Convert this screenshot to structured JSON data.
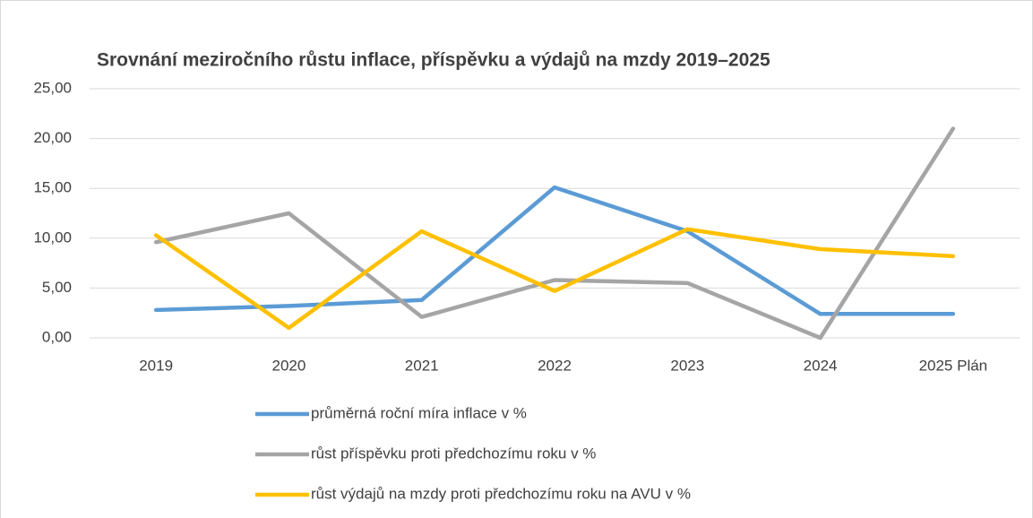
{
  "chart_data": {
    "type": "line",
    "title": "Srovnání meziročního růstu inflace, příspěvku a výdajů na mzdy 2019–2025",
    "categories": [
      "2019",
      "2020",
      "2021",
      "2022",
      "2023",
      "2024",
      "2025 Plán"
    ],
    "series": [
      {
        "name": "průměrná roční míra inflace v %",
        "color": "#5b9bd5",
        "values": [
          2.8,
          3.2,
          3.8,
          15.1,
          10.7,
          2.4,
          2.4
        ]
      },
      {
        "name": "růst příspěvku proti předchozímu roku v %",
        "color": "#a5a5a5",
        "values": [
          9.6,
          12.5,
          2.1,
          5.8,
          5.5,
          0,
          21.0
        ]
      },
      {
        "name": "růst výdajů na mzdy proti předchozímu roku na AVU v %",
        "color": "#ffc000",
        "values": [
          10.3,
          1.0,
          10.7,
          4.7,
          10.9,
          8.9,
          8.2
        ]
      }
    ],
    "ylim": [
      0,
      25
    ],
    "yticks": [
      {
        "value": 0,
        "label": "0,00"
      },
      {
        "value": 5,
        "label": "5,00"
      },
      {
        "value": 10,
        "label": "10,00"
      },
      {
        "value": 15,
        "label": "15,00"
      },
      {
        "value": 20,
        "label": "20,00"
      },
      {
        "value": 25,
        "label": "25,00"
      }
    ],
    "grid": true
  }
}
